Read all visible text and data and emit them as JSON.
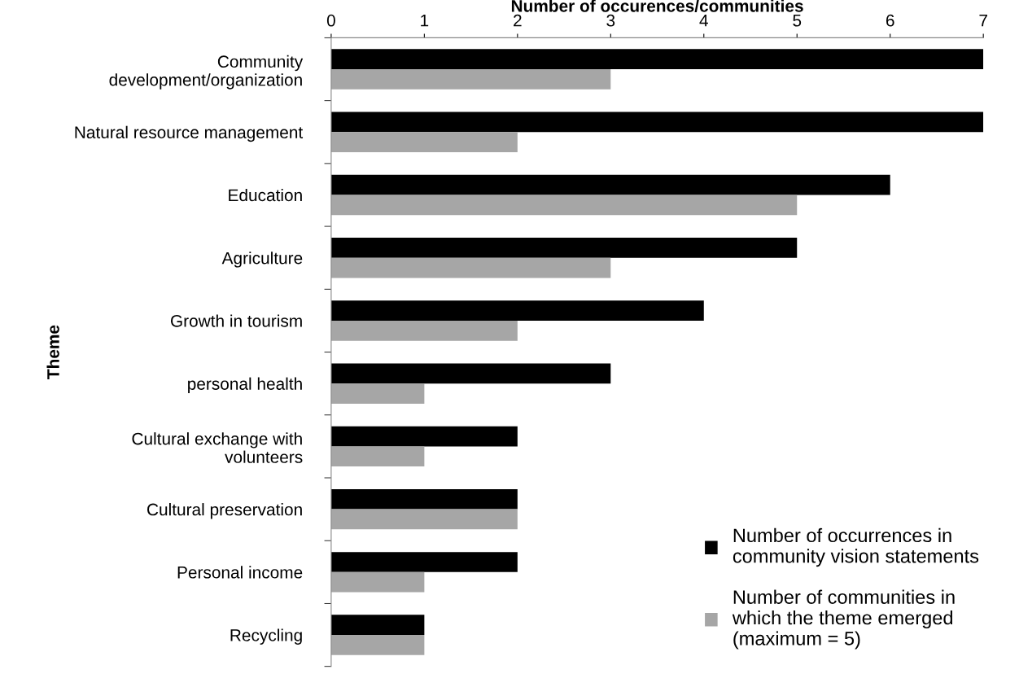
{
  "chart_data": {
    "type": "bar",
    "orientation": "horizontal",
    "xlabel": "Number of occurences/communities",
    "ylabel": "Theme",
    "categories": [
      "Community\ndevelopment/organization",
      "Natural resource management",
      "Education",
      "Agriculture",
      "Growth in tourism",
      "personal health",
      "Cultural exchange with\nvolunteers",
      "Cultural preservation",
      "Personal income",
      "Recycling"
    ],
    "series": [
      {
        "name": "Number of occurrences in\ncommunity vision statements",
        "color": "#000000",
        "values": [
          7,
          7,
          6,
          5,
          4,
          3,
          2,
          2,
          2,
          1
        ]
      },
      {
        "name": "Number of communities in\nwhich the theme emerged\n(maximum = 5)",
        "color": "#a6a6a6",
        "values": [
          3,
          2,
          5,
          3,
          2,
          1,
          1,
          2,
          1,
          1
        ]
      }
    ],
    "xlim": [
      0,
      7
    ],
    "xticks": [
      0,
      1,
      2,
      3,
      4,
      5,
      6,
      7
    ],
    "grid": false,
    "legend": "bottom right"
  }
}
